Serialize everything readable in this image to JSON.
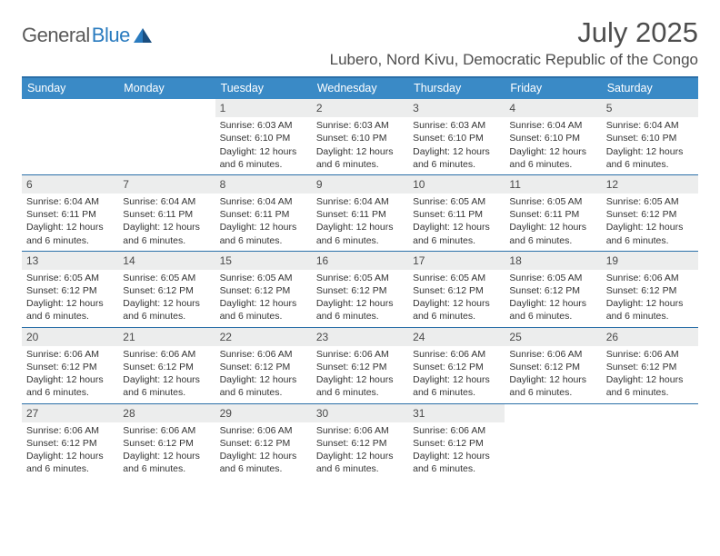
{
  "logo": {
    "text1": "General",
    "text2": "Blue"
  },
  "title": "July 2025",
  "location": "Lubero, Nord Kivu, Democratic Republic of the Congo",
  "colors": {
    "header_bg": "#3a8ac6",
    "border": "#2a6fa8",
    "daynum_bg": "#eceded",
    "text": "#333333",
    "title_text": "#4d4d4d",
    "logo_gray": "#5a5a5a",
    "logo_blue": "#2a7bbf",
    "background": "#ffffff"
  },
  "weekdays": [
    "Sunday",
    "Monday",
    "Tuesday",
    "Wednesday",
    "Thursday",
    "Friday",
    "Saturday"
  ],
  "weeks": [
    [
      {
        "num": "",
        "empty": true
      },
      {
        "num": "",
        "empty": true
      },
      {
        "num": "1",
        "sunrise": "Sunrise: 6:03 AM",
        "sunset": "Sunset: 6:10 PM",
        "daylight": "Daylight: 12 hours and 6 minutes."
      },
      {
        "num": "2",
        "sunrise": "Sunrise: 6:03 AM",
        "sunset": "Sunset: 6:10 PM",
        "daylight": "Daylight: 12 hours and 6 minutes."
      },
      {
        "num": "3",
        "sunrise": "Sunrise: 6:03 AM",
        "sunset": "Sunset: 6:10 PM",
        "daylight": "Daylight: 12 hours and 6 minutes."
      },
      {
        "num": "4",
        "sunrise": "Sunrise: 6:04 AM",
        "sunset": "Sunset: 6:10 PM",
        "daylight": "Daylight: 12 hours and 6 minutes."
      },
      {
        "num": "5",
        "sunrise": "Sunrise: 6:04 AM",
        "sunset": "Sunset: 6:10 PM",
        "daylight": "Daylight: 12 hours and 6 minutes."
      }
    ],
    [
      {
        "num": "6",
        "sunrise": "Sunrise: 6:04 AM",
        "sunset": "Sunset: 6:11 PM",
        "daylight": "Daylight: 12 hours and 6 minutes."
      },
      {
        "num": "7",
        "sunrise": "Sunrise: 6:04 AM",
        "sunset": "Sunset: 6:11 PM",
        "daylight": "Daylight: 12 hours and 6 minutes."
      },
      {
        "num": "8",
        "sunrise": "Sunrise: 6:04 AM",
        "sunset": "Sunset: 6:11 PM",
        "daylight": "Daylight: 12 hours and 6 minutes."
      },
      {
        "num": "9",
        "sunrise": "Sunrise: 6:04 AM",
        "sunset": "Sunset: 6:11 PM",
        "daylight": "Daylight: 12 hours and 6 minutes."
      },
      {
        "num": "10",
        "sunrise": "Sunrise: 6:05 AM",
        "sunset": "Sunset: 6:11 PM",
        "daylight": "Daylight: 12 hours and 6 minutes."
      },
      {
        "num": "11",
        "sunrise": "Sunrise: 6:05 AM",
        "sunset": "Sunset: 6:11 PM",
        "daylight": "Daylight: 12 hours and 6 minutes."
      },
      {
        "num": "12",
        "sunrise": "Sunrise: 6:05 AM",
        "sunset": "Sunset: 6:12 PM",
        "daylight": "Daylight: 12 hours and 6 minutes."
      }
    ],
    [
      {
        "num": "13",
        "sunrise": "Sunrise: 6:05 AM",
        "sunset": "Sunset: 6:12 PM",
        "daylight": "Daylight: 12 hours and 6 minutes."
      },
      {
        "num": "14",
        "sunrise": "Sunrise: 6:05 AM",
        "sunset": "Sunset: 6:12 PM",
        "daylight": "Daylight: 12 hours and 6 minutes."
      },
      {
        "num": "15",
        "sunrise": "Sunrise: 6:05 AM",
        "sunset": "Sunset: 6:12 PM",
        "daylight": "Daylight: 12 hours and 6 minutes."
      },
      {
        "num": "16",
        "sunrise": "Sunrise: 6:05 AM",
        "sunset": "Sunset: 6:12 PM",
        "daylight": "Daylight: 12 hours and 6 minutes."
      },
      {
        "num": "17",
        "sunrise": "Sunrise: 6:05 AM",
        "sunset": "Sunset: 6:12 PM",
        "daylight": "Daylight: 12 hours and 6 minutes."
      },
      {
        "num": "18",
        "sunrise": "Sunrise: 6:05 AM",
        "sunset": "Sunset: 6:12 PM",
        "daylight": "Daylight: 12 hours and 6 minutes."
      },
      {
        "num": "19",
        "sunrise": "Sunrise: 6:06 AM",
        "sunset": "Sunset: 6:12 PM",
        "daylight": "Daylight: 12 hours and 6 minutes."
      }
    ],
    [
      {
        "num": "20",
        "sunrise": "Sunrise: 6:06 AM",
        "sunset": "Sunset: 6:12 PM",
        "daylight": "Daylight: 12 hours and 6 minutes."
      },
      {
        "num": "21",
        "sunrise": "Sunrise: 6:06 AM",
        "sunset": "Sunset: 6:12 PM",
        "daylight": "Daylight: 12 hours and 6 minutes."
      },
      {
        "num": "22",
        "sunrise": "Sunrise: 6:06 AM",
        "sunset": "Sunset: 6:12 PM",
        "daylight": "Daylight: 12 hours and 6 minutes."
      },
      {
        "num": "23",
        "sunrise": "Sunrise: 6:06 AM",
        "sunset": "Sunset: 6:12 PM",
        "daylight": "Daylight: 12 hours and 6 minutes."
      },
      {
        "num": "24",
        "sunrise": "Sunrise: 6:06 AM",
        "sunset": "Sunset: 6:12 PM",
        "daylight": "Daylight: 12 hours and 6 minutes."
      },
      {
        "num": "25",
        "sunrise": "Sunrise: 6:06 AM",
        "sunset": "Sunset: 6:12 PM",
        "daylight": "Daylight: 12 hours and 6 minutes."
      },
      {
        "num": "26",
        "sunrise": "Sunrise: 6:06 AM",
        "sunset": "Sunset: 6:12 PM",
        "daylight": "Daylight: 12 hours and 6 minutes."
      }
    ],
    [
      {
        "num": "27",
        "sunrise": "Sunrise: 6:06 AM",
        "sunset": "Sunset: 6:12 PM",
        "daylight": "Daylight: 12 hours and 6 minutes."
      },
      {
        "num": "28",
        "sunrise": "Sunrise: 6:06 AM",
        "sunset": "Sunset: 6:12 PM",
        "daylight": "Daylight: 12 hours and 6 minutes."
      },
      {
        "num": "29",
        "sunrise": "Sunrise: 6:06 AM",
        "sunset": "Sunset: 6:12 PM",
        "daylight": "Daylight: 12 hours and 6 minutes."
      },
      {
        "num": "30",
        "sunrise": "Sunrise: 6:06 AM",
        "sunset": "Sunset: 6:12 PM",
        "daylight": "Daylight: 12 hours and 6 minutes."
      },
      {
        "num": "31",
        "sunrise": "Sunrise: 6:06 AM",
        "sunset": "Sunset: 6:12 PM",
        "daylight": "Daylight: 12 hours and 6 minutes."
      },
      {
        "num": "",
        "empty": true
      },
      {
        "num": "",
        "empty": true
      }
    ]
  ]
}
